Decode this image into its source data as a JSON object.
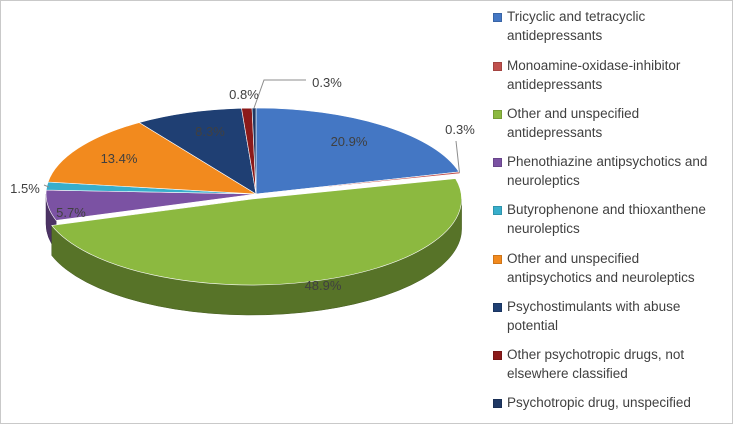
{
  "chart_data": {
    "type": "pie",
    "style": "3d-exploded-pie",
    "legend_position": "right",
    "slices": [
      {
        "label": "Tricyclic and tetracyclic antidepressants",
        "value": 20.9,
        "value_label": "20.9%",
        "color": "#4477C4"
      },
      {
        "label": "Monoamine-oxidase-inhibitor antidepressants",
        "value": 0.3,
        "value_label": "0.3%",
        "color": "#C0504D"
      },
      {
        "label": "Other and unspecified antidepressants",
        "value": 48.9,
        "value_label": "48.9%",
        "color": "#8CB940"
      },
      {
        "label": "Phenothiazine antipsychotics and neuroleptics",
        "value": 5.7,
        "value_label": "5.7%",
        "color": "#7B52A3"
      },
      {
        "label": "Butyrophenone and thioxanthene neuroleptics",
        "value": 1.5,
        "value_label": "1.5%",
        "color": "#38AECB"
      },
      {
        "label": "Other and unspecified antipsychotics and neuroleptics",
        "value": 13.4,
        "value_label": "13.4%",
        "color": "#F28A1E"
      },
      {
        "label": "Psychostimulants with abuse potential",
        "value": 8.3,
        "value_label": "8.3%",
        "color": "#1F3F73"
      },
      {
        "label": "Other psychotropic drugs, not elsewhere classified",
        "value": 0.8,
        "value_label": "0.8%",
        "color": "#8B1A1A"
      },
      {
        "label": "Psychotropic drug, unspecified",
        "value": 0.3,
        "value_label": "0.3%",
        "color": "#1F3864"
      }
    ]
  },
  "legend": {
    "items": [
      {
        "lines": [
          "Tricyclic and tetracyclic",
          "antidepressants"
        ]
      },
      {
        "lines": [
          "Monoamine-oxidase-inhibitor",
          "antidepressants"
        ]
      },
      {
        "lines": [
          "Other and unspecified",
          "antidepressants"
        ]
      },
      {
        "lines": [
          "Phenothiazine antipsychotics and",
          "neuroleptics"
        ]
      },
      {
        "lines": [
          "Butyrophenone and thioxanthene",
          "neuroleptics"
        ]
      },
      {
        "lines": [
          "Other and unspecified",
          "antipsychotics and neuroleptics"
        ]
      },
      {
        "lines": [
          "Psychostimulants with abuse",
          "potential"
        ]
      },
      {
        "lines": [
          "Other psychotropic drugs, not",
          "elsewhere classified"
        ]
      },
      {
        "lines": [
          "Psychotropic drug, unspecified"
        ]
      }
    ]
  }
}
